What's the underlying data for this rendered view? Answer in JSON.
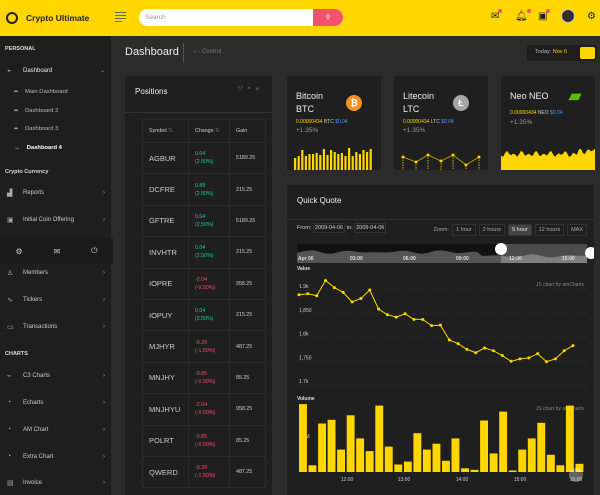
{
  "app": {
    "title": "Crypto Ultimate"
  },
  "header": {
    "search_placeholder": "Search"
  },
  "sidebar": {
    "section_personal": "PERSONAL",
    "dashboard": "Dashboard",
    "sub": [
      "Main Dashboard",
      "Dashboard 2",
      "Dashboard 3",
      "Dashboard 4"
    ],
    "section_crypto": "Crypto Currency",
    "items1": [
      "Reports",
      "Initial Coin Offering"
    ],
    "items2": [
      "Members",
      "Tickers",
      "Transactions"
    ],
    "section_charts": "CHARTS",
    "items3": [
      "C3 Charts",
      "Echarts",
      "AM Chart",
      "Extra Chart",
      "Invoice"
    ]
  },
  "page": {
    "title": "Dashboard",
    "breadcrumb": "- Control",
    "today_label": "Today:",
    "today_value": "Nov 6"
  },
  "positions": {
    "title": "Positions",
    "headers": [
      "Symbol",
      "Change",
      "Gain"
    ],
    "rows": [
      [
        "AGBUR",
        "0.04",
        "(2.50%)",
        "5189.25",
        "up"
      ],
      [
        "DCFRE",
        "0.89",
        "(2.50%)",
        "215.25",
        "up"
      ],
      [
        "GFTRE",
        "0.04",
        "(2.50%)",
        "5189.25",
        "up"
      ],
      [
        "INVHTR",
        "0.04",
        "(2.50%)",
        "215.25",
        "up"
      ],
      [
        "IOPRE",
        "-2.04",
        "(-9.50%)",
        "958.25",
        "dn"
      ],
      [
        "IOPUY",
        "0.04",
        "(2.50%)",
        "215.25",
        "up"
      ],
      [
        "MJHYR",
        "-0.39",
        "(-1.50%)",
        "487.25",
        "dn"
      ],
      [
        "MNJHY",
        "-0.85",
        "(-0.50%)",
        "85.25",
        "dn"
      ],
      [
        "MNJHYU",
        "-2.04",
        "(-9.50%)",
        "958.25",
        "dn"
      ],
      [
        "POLRT",
        "-0.85",
        "(-0.50%)",
        "85.25",
        "dn"
      ],
      [
        "QWERD",
        "-0.39",
        "(-1.50%)",
        "487.25",
        "dn"
      ]
    ]
  },
  "coins": [
    {
      "name": "Bitcoin BTC",
      "amount": "0.00000434",
      "unit": "BTC",
      "usd": "$0.04",
      "change": "+1.35%",
      "color": "#f7931a",
      "glyph": "₿"
    },
    {
      "name": "Litecoin LTC",
      "amount": "0.00000434",
      "unit": "LTC",
      "usd": "$0.04",
      "change": "+1.35%",
      "color": "#a6a6a6",
      "glyph": "Ł"
    },
    {
      "name": "Neo NEO",
      "amount": "0.00000434",
      "unit": "NEO",
      "usd": "$0.04",
      "change": "+1.35%",
      "color": "#58bf00",
      "glyph": ""
    }
  ],
  "quote": {
    "title": "Quick Quote",
    "from_label": "From:",
    "from": "2009-04-06",
    "to_label": "to:",
    "to": "2009-04-06",
    "zoom_label": "Zoom:",
    "zoom_options": [
      "1 hour",
      "2 hours",
      "5 hour",
      "12 hours",
      "MAX"
    ],
    "zoom_selected": "5 hour",
    "navigator_ticks": [
      "Apr 06",
      "03:00",
      "06:00",
      "09:00",
      "12:00",
      "15:00"
    ],
    "value_label": "Value",
    "volume_label": "Volume",
    "credit": "JS chart by amCharts",
    "value_ticks": [
      "1.7k",
      "1,750",
      "1.8k",
      "1,850",
      "1.9k"
    ],
    "volume_ticks": [
      "0",
      "50M"
    ],
    "time_ticks": [
      "12:00",
      "13:00",
      "14:00",
      "15:00",
      "16:00"
    ]
  },
  "chart_data": {
    "type": "line",
    "title": "Quick Quote",
    "x_ticks": [
      "12:00",
      "13:00",
      "14:00",
      "15:00",
      "16:00"
    ],
    "ylim": [
      1700,
      1950
    ],
    "series": [
      {
        "name": "Value",
        "values": [
          1890,
          1892,
          1888,
          1920,
          1905,
          1895,
          1875,
          1882,
          1900,
          1860,
          1848,
          1843,
          1850,
          1838,
          1838,
          1825,
          1826,
          1795,
          1787,
          1775,
          1768,
          1778,
          1772,
          1762,
          1750,
          1755,
          1757,
          1766,
          1749,
          1755,
          1772,
          1783
        ]
      },
      {
        "name": "Volume",
        "values": [
          91,
          9,
          65,
          70,
          30,
          76,
          45,
          28,
          89,
          34,
          10,
          14,
          52,
          30,
          38,
          15,
          45,
          5,
          3,
          69,
          25,
          81,
          2,
          30,
          45,
          66,
          23,
          9,
          89,
          11
        ]
      }
    ]
  }
}
